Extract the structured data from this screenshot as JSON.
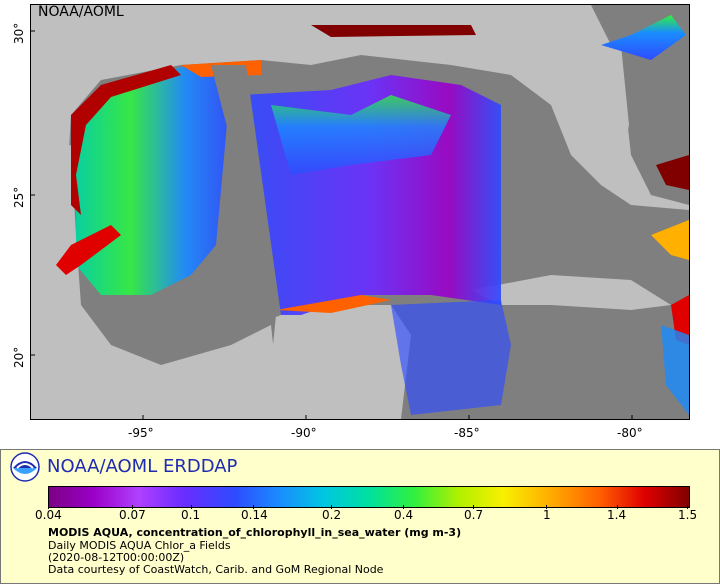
{
  "map": {
    "corner_label": "NOAA/AOML",
    "lon_ticks": [
      "-95°",
      "-90°",
      "-85°",
      "-80°"
    ],
    "lat_ticks": [
      "30°",
      "25°",
      "20°"
    ]
  },
  "legend": {
    "title": "NOAA/AOML ERDDAP",
    "colorbar_ticks": [
      "0.04",
      "0.07",
      "0.1",
      "0.14",
      "0.2",
      "0.4",
      "0.7",
      "1",
      "1.4",
      "1.5"
    ],
    "variable_line": "MODIS AQUA, concentration_of_chlorophyll_in_sea_water (mg m-3)",
    "dataset_line": "Daily MODIS AQUA Chlor_a Fields",
    "time_line": "(2020-08-12T00:00:00Z)",
    "credit_line": "Data courtesy of CoastWatch, Carib. and GoM Regional Node"
  },
  "colors": {
    "land": "#bfbfbf",
    "no_data_ocean": "#7f7f7f",
    "colorbar": [
      "#7b0084",
      "#9b00c8",
      "#b040ff",
      "#6a2cff",
      "#2e4bff",
      "#1a8cff",
      "#00c7e0",
      "#00e0a0",
      "#30f040",
      "#b0f000",
      "#f8f000",
      "#ffb000",
      "#ff6000",
      "#e00000",
      "#800000"
    ]
  }
}
